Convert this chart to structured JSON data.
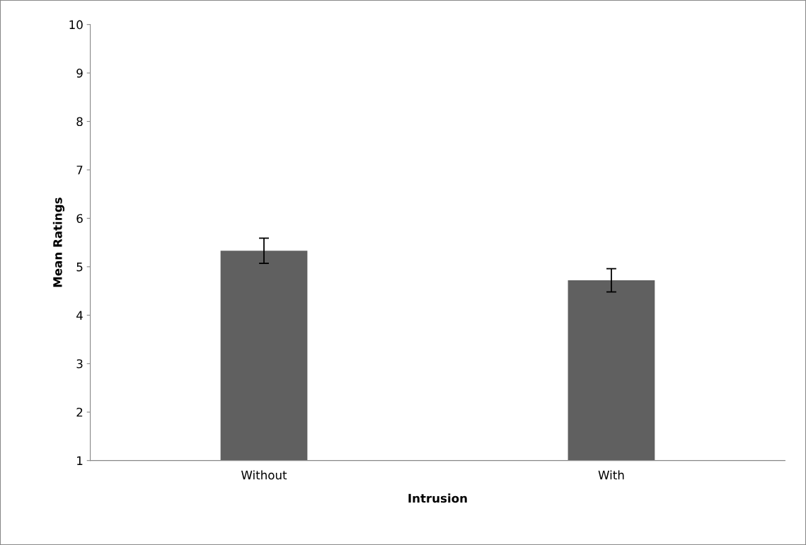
{
  "chart_data": {
    "type": "bar",
    "xlabel": "Intrusion",
    "ylabel": "Mean Ratings",
    "categories": [
      "Without",
      "With"
    ],
    "values": [
      5.33,
      4.72
    ],
    "errors": [
      0.26,
      0.24
    ],
    "color": "#606060",
    "ylim": [
      1,
      10
    ],
    "yticks": [
      1,
      2,
      3,
      4,
      5,
      6,
      7,
      8,
      9,
      10
    ],
    "grid": false
  }
}
